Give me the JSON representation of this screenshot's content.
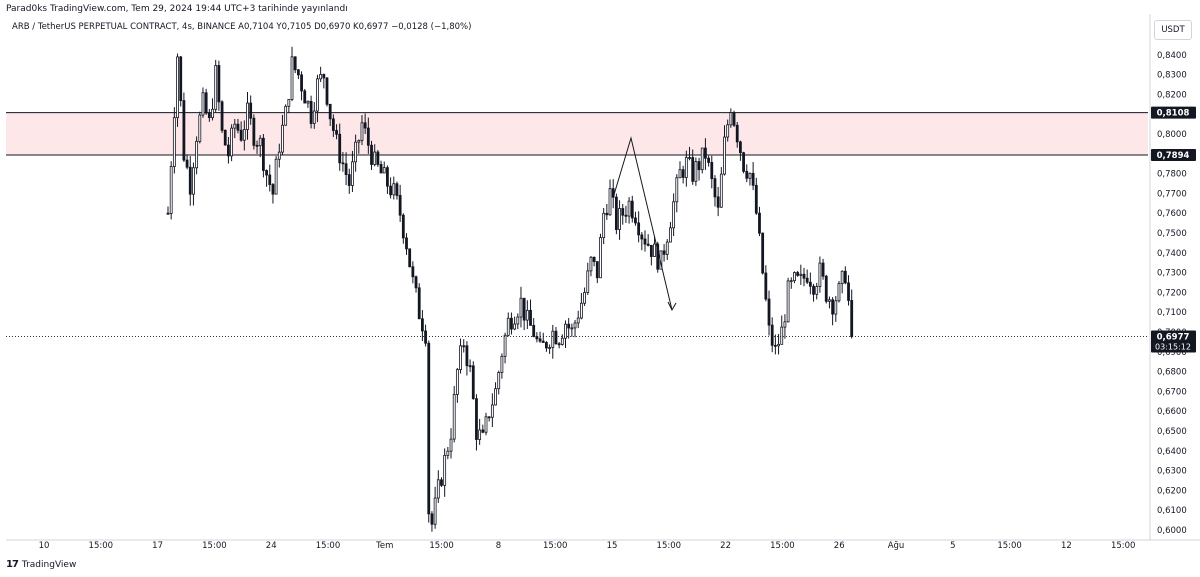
{
  "header": {
    "attribution": "Parad0ks TradingView.com, Tem 29, 2024 19:44 UTC+3 tarihinde yayınlandı",
    "symbol_line": "ARB / TetherUS PERPETUAL CONTRACT, 4s, BINANCE  A0,7104  Y0,7105  D0,6970  K0,6977  −0,0128 (−1,80%)"
  },
  "currency_button": "USDT",
  "footer": {
    "logo_text": "17",
    "brand": "TradingView"
  },
  "colors": {
    "candle": "#131722",
    "zone_fill": "#fde7e9",
    "zone_line": "#131722",
    "price_label_bg": "#131722",
    "grid_text": "#131722",
    "axis_line": "#d1d4dc"
  },
  "chart_data": {
    "type": "line",
    "title": "",
    "xlabel": "",
    "ylabel": "",
    "ylim": [
      0.6,
      0.85
    ],
    "y_ticks": [
      "0,6000",
      "0,6100",
      "0,6200",
      "0,6300",
      "0,6400",
      "0,6500",
      "0,6600",
      "0,6700",
      "0,6800",
      "0,6900",
      "0,7000",
      "0,7100",
      "0,7200",
      "0,7300",
      "0,7400",
      "0,7500",
      "0,7600",
      "0,7700",
      "0,7800",
      "0,7900",
      "0,8000",
      "0,8100",
      "0,8200",
      "0,8300",
      "0,8400"
    ],
    "x_ticks": [
      "10",
      "15:00",
      "17",
      "15:00",
      "24",
      "15:00",
      "Tem",
      "15:00",
      "8",
      "15:00",
      "15",
      "15:00",
      "22",
      "15:00",
      "26",
      "Ağu",
      "5",
      "15:00",
      "12",
      "15:00"
    ],
    "zone": {
      "upper": 0.8108,
      "lower": 0.7894,
      "upper_label": "0,8108",
      "lower_label": "0,7894"
    },
    "current_price": {
      "value": 0.6977,
      "label": "0,6977",
      "countdown": "03:15:12"
    },
    "price_path": [
      [
        0,
        0.76
      ],
      [
        3,
        0.84
      ],
      [
        5,
        0.79
      ],
      [
        7,
        0.775
      ],
      [
        9,
        0.8
      ],
      [
        11,
        0.815
      ],
      [
        13,
        0.805
      ],
      [
        15,
        0.83
      ],
      [
        17,
        0.8
      ],
      [
        19,
        0.79
      ],
      [
        21,
        0.805
      ],
      [
        23,
        0.8
      ],
      [
        25,
        0.81
      ],
      [
        27,
        0.8
      ],
      [
        29,
        0.795
      ],
      [
        31,
        0.78
      ],
      [
        33,
        0.77
      ],
      [
        35,
        0.795
      ],
      [
        37,
        0.81
      ],
      [
        39,
        0.835
      ],
      [
        41,
        0.83
      ],
      [
        43,
        0.82
      ],
      [
        45,
        0.81
      ],
      [
        47,
        0.825
      ],
      [
        49,
        0.83
      ],
      [
        51,
        0.81
      ],
      [
        53,
        0.795
      ],
      [
        55,
        0.785
      ],
      [
        57,
        0.775
      ],
      [
        59,
        0.79
      ],
      [
        61,
        0.805
      ],
      [
        63,
        0.795
      ],
      [
        65,
        0.785
      ],
      [
        67,
        0.78
      ],
      [
        69,
        0.775
      ],
      [
        71,
        0.77
      ],
      [
        73,
        0.76
      ],
      [
        75,
        0.745
      ],
      [
        77,
        0.725
      ],
      [
        79,
        0.71
      ],
      [
        81,
        0.7
      ],
      [
        82,
        0.61
      ],
      [
        83,
        0.603
      ],
      [
        85,
        0.62
      ],
      [
        87,
        0.635
      ],
      [
        89,
        0.65
      ],
      [
        91,
        0.68
      ],
      [
        93,
        0.695
      ],
      [
        95,
        0.68
      ],
      [
        97,
        0.65
      ],
      [
        99,
        0.645
      ],
      [
        101,
        0.66
      ],
      [
        103,
        0.67
      ],
      [
        105,
        0.69
      ],
      [
        107,
        0.705
      ],
      [
        109,
        0.71
      ],
      [
        111,
        0.715
      ],
      [
        113,
        0.705
      ],
      [
        115,
        0.7
      ],
      [
        117,
        0.69
      ],
      [
        119,
        0.695
      ],
      [
        121,
        0.7
      ],
      [
        123,
        0.698
      ],
      [
        125,
        0.705
      ],
      [
        127,
        0.7
      ],
      [
        129,
        0.71
      ],
      [
        131,
        0.72
      ],
      [
        133,
        0.735
      ],
      [
        135,
        0.73
      ],
      [
        137,
        0.76
      ],
      [
        139,
        0.77
      ],
      [
        141,
        0.755
      ],
      [
        143,
        0.76
      ],
      [
        145,
        0.765
      ],
      [
        147,
        0.76
      ],
      [
        149,
        0.75
      ],
      [
        151,
        0.745
      ],
      [
        153,
        0.74
      ],
      [
        155,
        0.735
      ],
      [
        157,
        0.75
      ],
      [
        159,
        0.765
      ],
      [
        161,
        0.78
      ],
      [
        163,
        0.785
      ],
      [
        165,
        0.78
      ],
      [
        167,
        0.785
      ],
      [
        169,
        0.79
      ],
      [
        171,
        0.775
      ],
      [
        173,
        0.76
      ],
      [
        175,
        0.795
      ],
      [
        177,
        0.815
      ],
      [
        179,
        0.8
      ],
      [
        181,
        0.785
      ],
      [
        183,
        0.78
      ],
      [
        185,
        0.76
      ],
      [
        187,
        0.73
      ],
      [
        189,
        0.7
      ],
      [
        191,
        0.69
      ],
      [
        193,
        0.7
      ],
      [
        195,
        0.72
      ],
      [
        197,
        0.725
      ],
      [
        199,
        0.725
      ],
      [
        201,
        0.73
      ],
      [
        203,
        0.725
      ],
      [
        205,
        0.73
      ],
      [
        207,
        0.72
      ],
      [
        209,
        0.715
      ],
      [
        211,
        0.72
      ],
      [
        213,
        0.73
      ],
      [
        214,
        0.715
      ],
      [
        215,
        0.6977
      ]
    ]
  }
}
